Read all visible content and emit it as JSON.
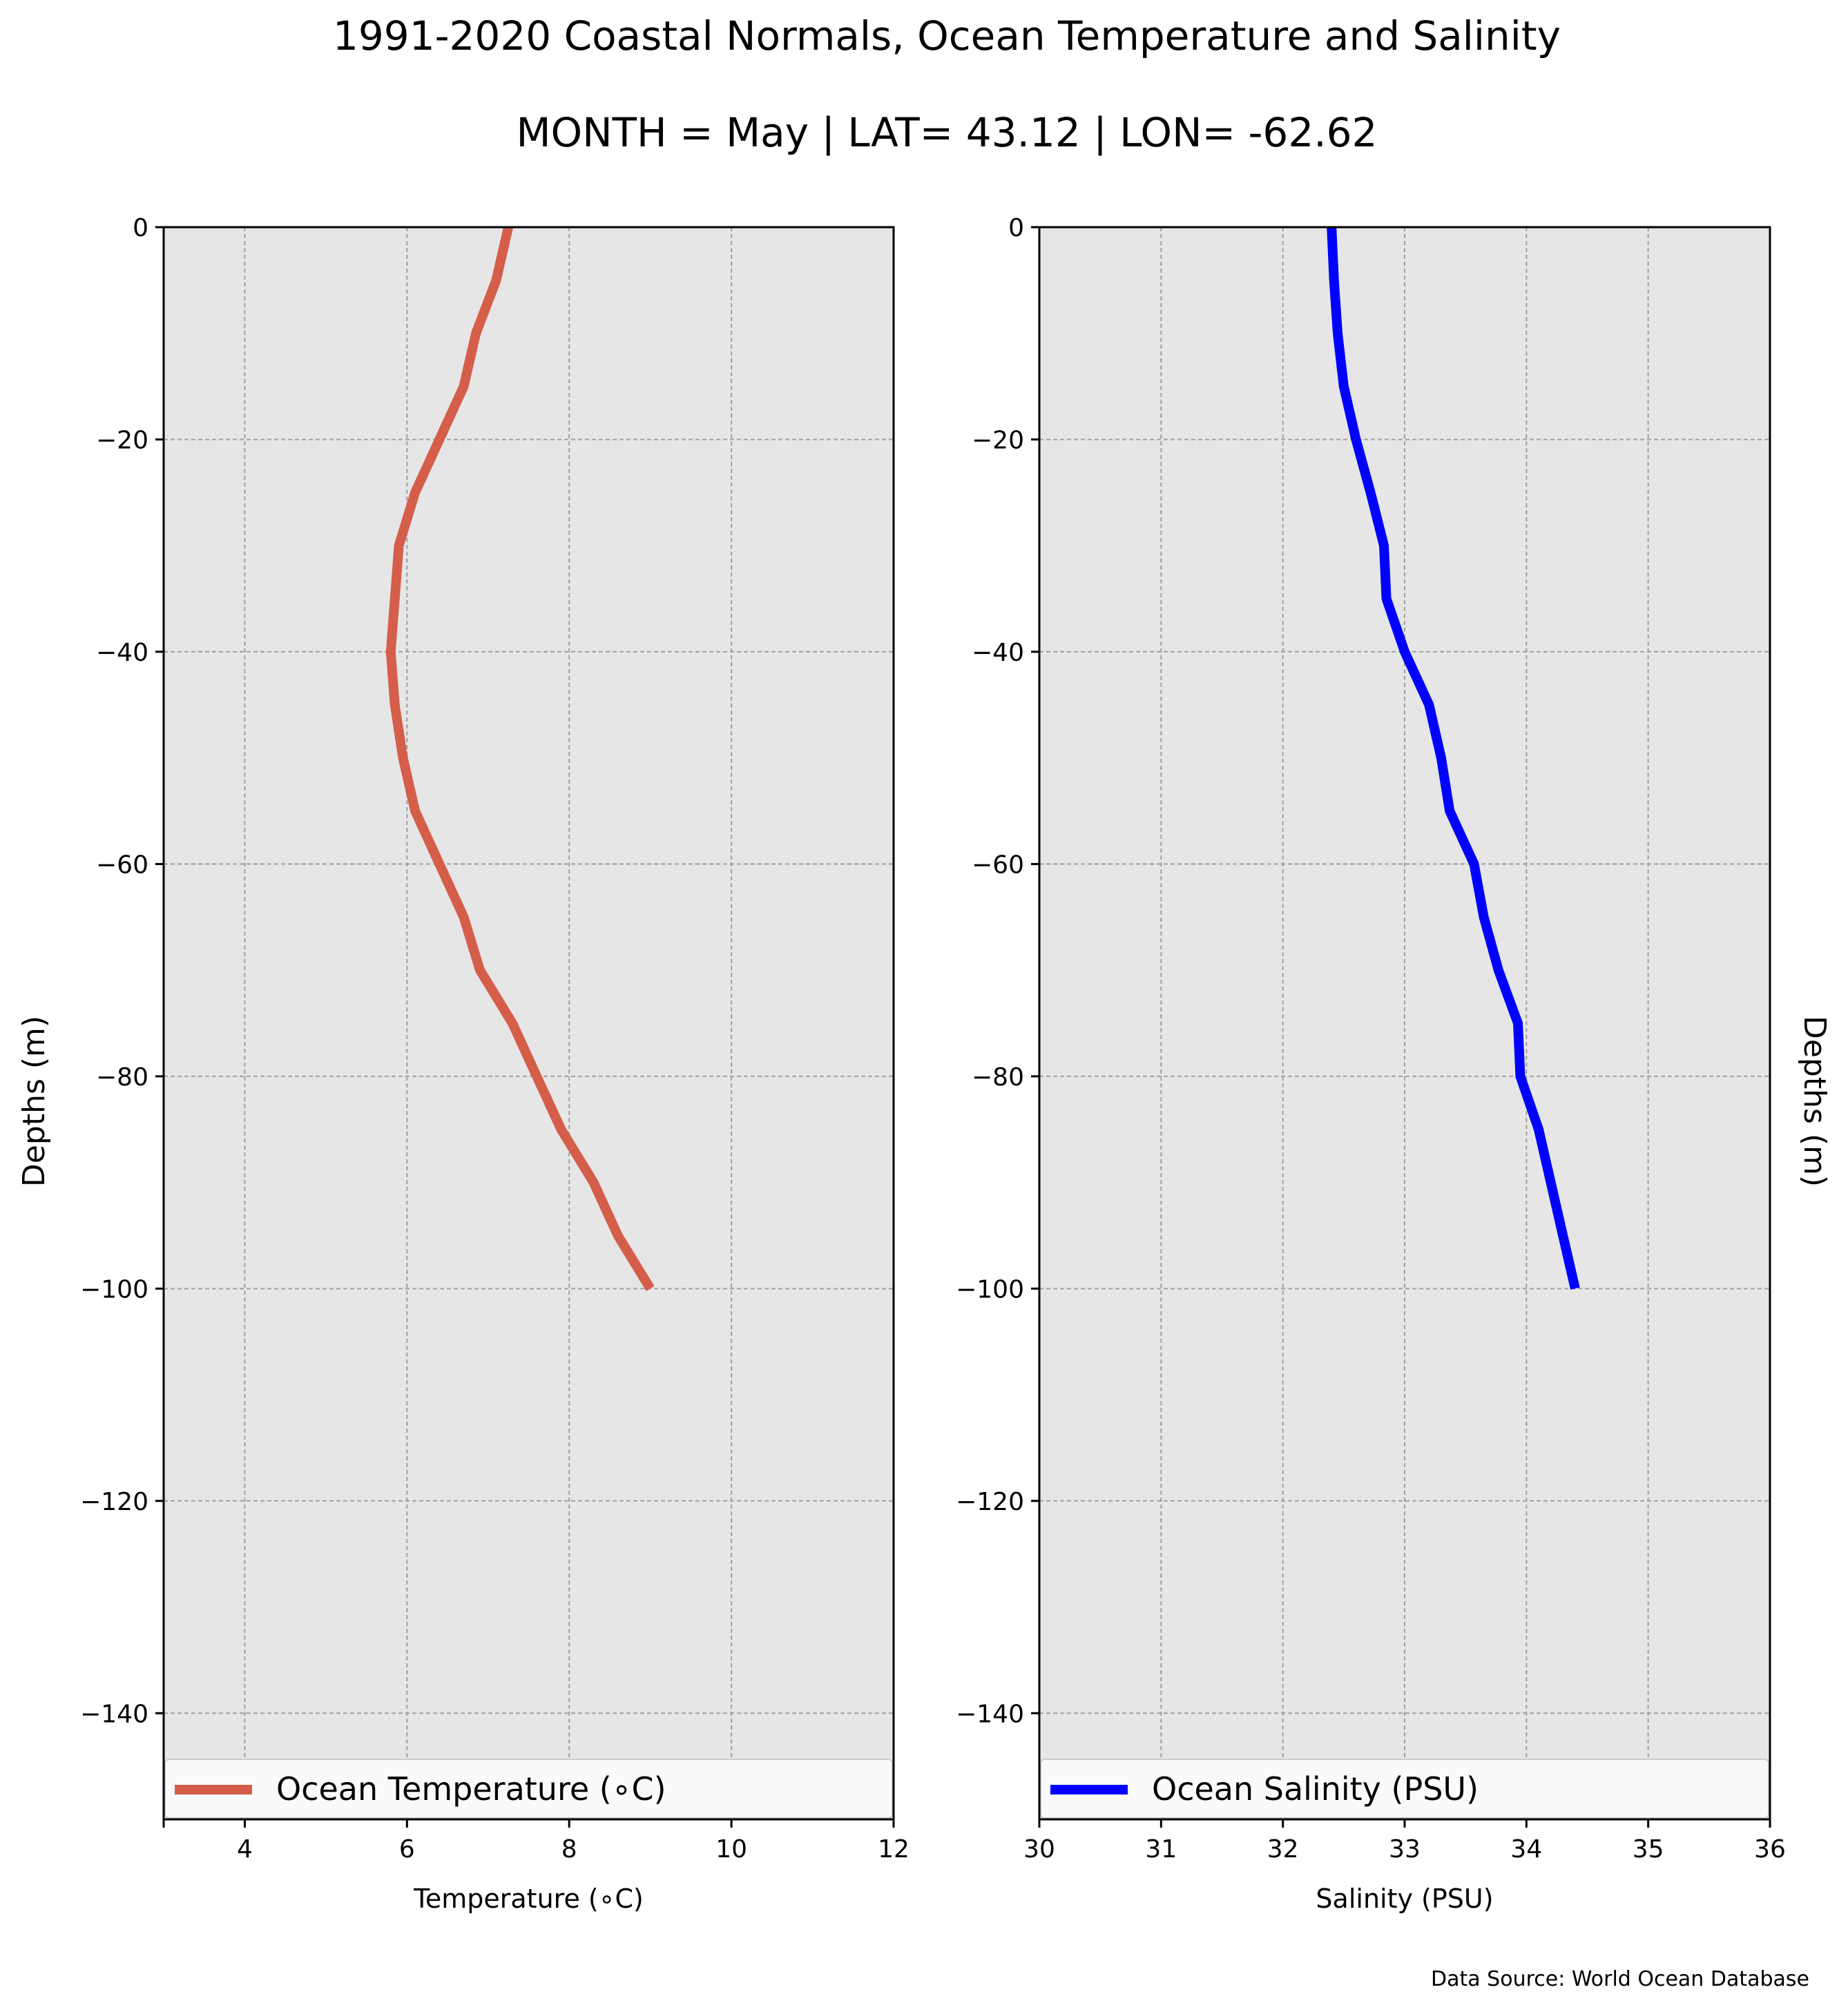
{
  "figure": {
    "title_line1": "1991-2020 Coastal Normals, Ocean Temperature and Salinity",
    "title_line2": "MONTH = May | LAT= 43.12 | LON= -62.62",
    "source": "Data Source: World Ocean Database"
  },
  "colors": {
    "plot_background": "#e6e6e6",
    "grid": "#a0a0a0",
    "temperature_line": "#d55e4a",
    "salinity_line": "#0000ff"
  },
  "chart_data": [
    {
      "type": "line",
      "title": "",
      "xlabel": "Temperature (∘C)",
      "ylabel": "Depths (m)",
      "xlim": [
        3,
        12
      ],
      "ylim": [
        -150,
        0
      ],
      "xticks": [
        4,
        6,
        8,
        10,
        12
      ],
      "xtick_labels": [
        "4",
        "6",
        "8",
        "10",
        "12"
      ],
      "yticks": [
        0,
        -20,
        -40,
        -60,
        -80,
        -100,
        -120,
        -140
      ],
      "ytick_labels": [
        "0",
        "−20",
        "−40",
        "−60",
        "−80",
        "−100",
        "−120",
        "−140"
      ],
      "grid": true,
      "legend_position": "lower center",
      "series": [
        {
          "name": "Ocean Temperature (∘C)",
          "color": "#d55e4a",
          "x": [
            7.25,
            7.1,
            6.85,
            6.7,
            6.4,
            6.1,
            5.9,
            5.85,
            5.8,
            5.85,
            5.95,
            6.1,
            6.4,
            6.7,
            6.9,
            7.3,
            7.6,
            7.9,
            8.3,
            8.6,
            9.0
          ],
          "y": [
            0,
            -5,
            -10,
            -15,
            -20,
            -25,
            -30,
            -35,
            -40,
            -45,
            -50,
            -55,
            -60,
            -65,
            -70,
            -75,
            -80,
            -85,
            -90,
            -95,
            -100
          ]
        }
      ]
    },
    {
      "type": "line",
      "title": "",
      "xlabel": "Salinity (PSU)",
      "ylabel": "Depths (m)",
      "xlim": [
        30,
        36
      ],
      "ylim": [
        -150,
        0
      ],
      "xticks": [
        30,
        31,
        32,
        33,
        34,
        35,
        36
      ],
      "xtick_labels": [
        "30",
        "31",
        "32",
        "33",
        "34",
        "35",
        "36"
      ],
      "yticks": [
        0,
        -20,
        -40,
        -60,
        -80,
        -100,
        -120,
        -140
      ],
      "ytick_labels": [
        "0",
        "−20",
        "−40",
        "−60",
        "−80",
        "−100",
        "−120",
        "−140"
      ],
      "grid": true,
      "legend_position": "lower center",
      "series": [
        {
          "name": "Ocean Salinity (PSU)",
          "color": "#0000ff",
          "x": [
            32.4,
            32.42,
            32.45,
            32.5,
            32.6,
            32.72,
            32.83,
            32.85,
            33.0,
            33.2,
            33.3,
            33.37,
            33.57,
            33.65,
            33.77,
            33.93,
            33.95,
            34.1,
            34.2,
            34.3,
            34.4
          ],
          "y": [
            0,
            -5,
            -10,
            -15,
            -20,
            -25,
            -30,
            -35,
            -40,
            -45,
            -50,
            -55,
            -60,
            -65,
            -70,
            -75,
            -80,
            -85,
            -90,
            -95,
            -100
          ]
        }
      ]
    }
  ]
}
